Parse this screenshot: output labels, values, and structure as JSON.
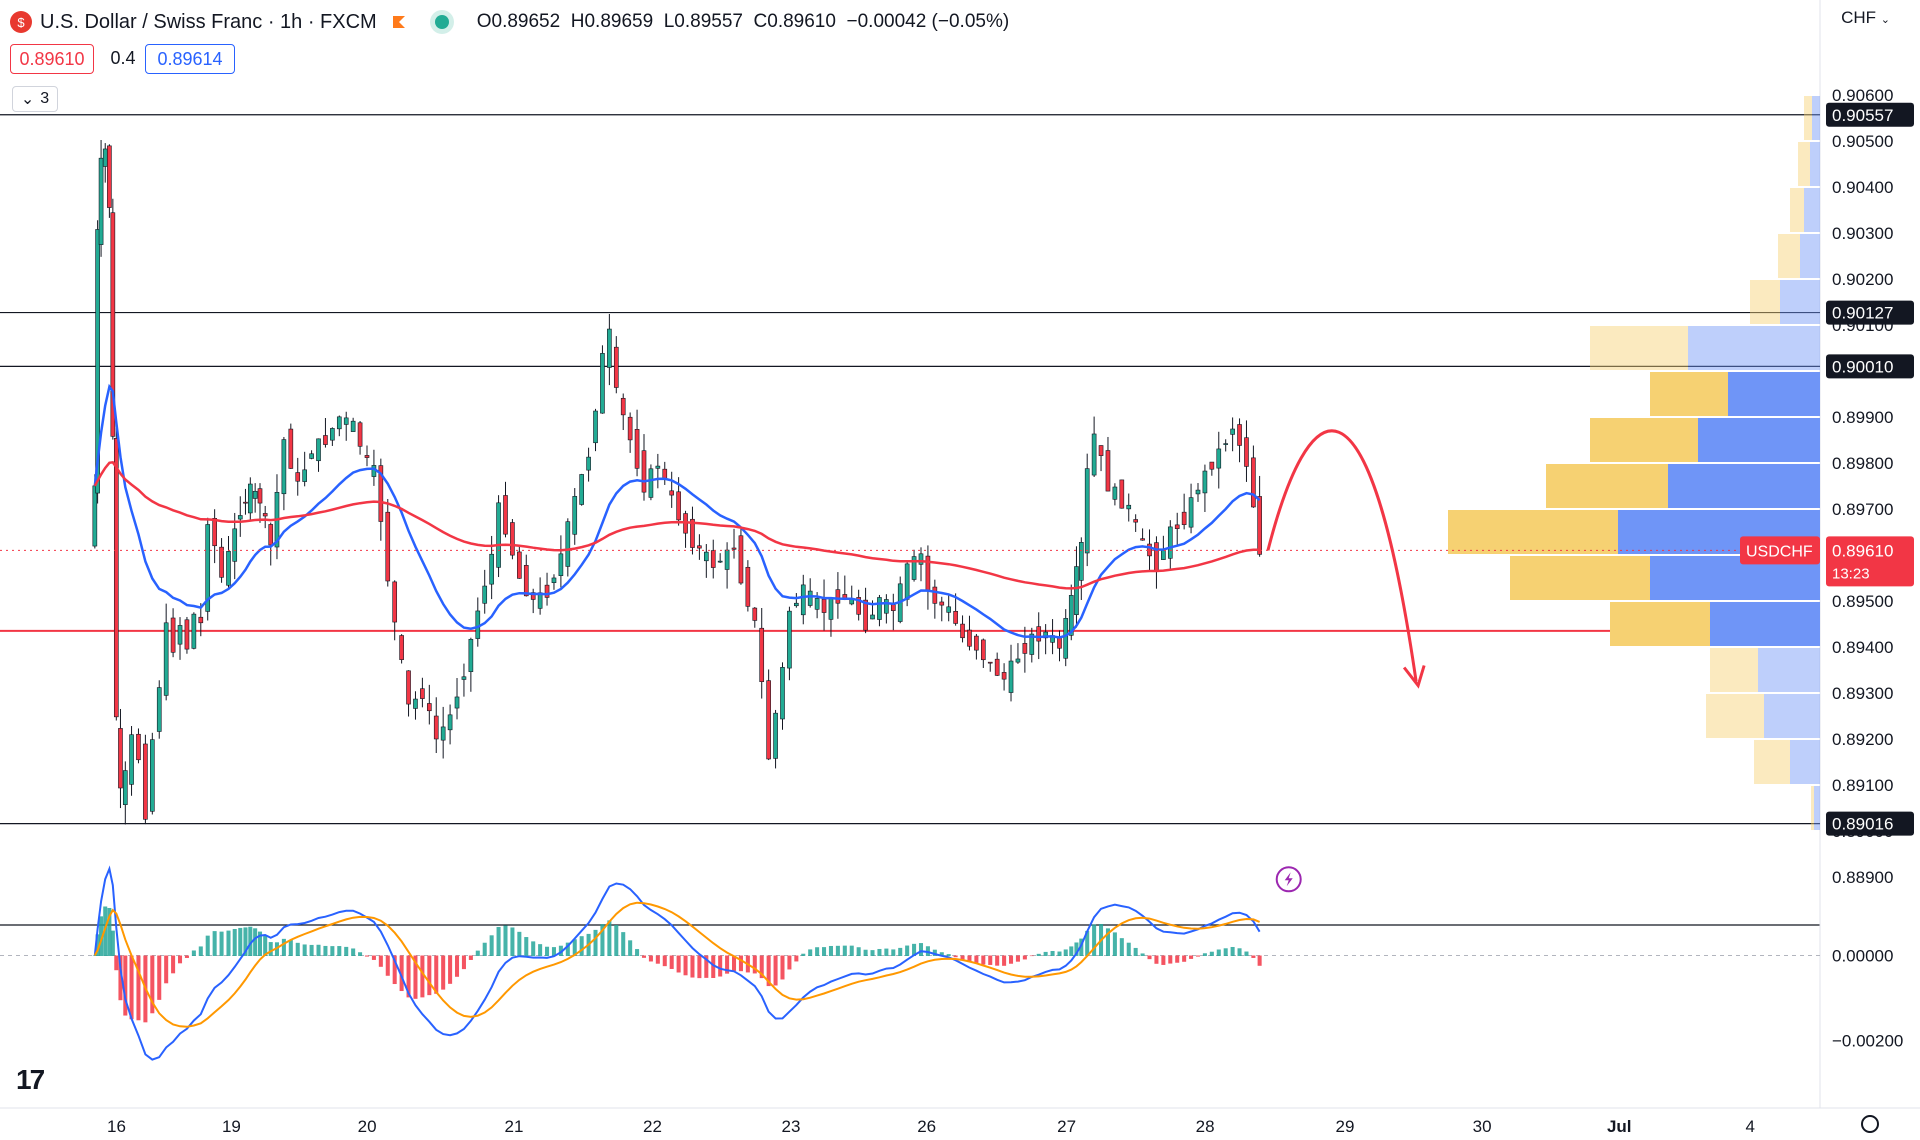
{
  "header": {
    "symbol_title": "U.S. Dollar / Swiss Franc · 1h · FXCM",
    "open": "O0.89652",
    "high": "H0.89659",
    "low": "L0.89557",
    "close": "C0.89610",
    "change": "−0.00042 (−0.05%)",
    "sell_price": "0.89610",
    "spread": "0.4",
    "buy_price": "0.89614",
    "indicator_count": "3",
    "currency": "CHF"
  },
  "chart_data": {
    "type": "candlestick",
    "symbol": "USDCHF",
    "timeframe": "1h",
    "price_axis": {
      "ylim": [
        0.8885,
        0.9065
      ],
      "ticks": [
        "0.90600",
        "0.90500",
        "0.90400",
        "0.90300",
        "0.90200",
        "0.90100",
        "0.90000",
        "0.89900",
        "0.89800",
        "0.89700",
        "0.89600",
        "0.89500",
        "0.89400",
        "0.89300",
        "0.89200",
        "0.89100",
        "0.89000",
        "0.88900"
      ]
    },
    "time_axis": {
      "labels": [
        "16",
        "19",
        "20",
        "21",
        "22",
        "23",
        "26",
        "27",
        "28",
        "29",
        "30",
        "Jul",
        "4"
      ],
      "label_index": [
        0.17,
        1,
        1.98,
        3.04,
        4.04,
        5.04,
        6.02,
        7.03,
        8.03,
        9.04,
        10.03,
        11,
        12
      ]
    },
    "horizontal_levels": [
      {
        "price": 0.90557,
        "label": "0.90557",
        "color": "#131722"
      },
      {
        "price": 0.90127,
        "label": "0.90127",
        "color": "#131722"
      },
      {
        "price": 0.9001,
        "label": "0.90010",
        "color": "#131722"
      },
      {
        "price": 0.89016,
        "label": "0.89016",
        "color": "#131722"
      },
      {
        "price": 0.89435,
        "label": "",
        "color": "#f23645"
      }
    ],
    "last_price": {
      "symbol": "USDCHF",
      "price": "0.89610",
      "countdown": "13:23",
      "color": "#f23645"
    },
    "price_path": [
      [
        0,
        0.8962
      ],
      [
        0.02,
        0.8975
      ],
      [
        0.04,
        0.903
      ],
      [
        0.07,
        0.9045
      ],
      [
        0.1,
        0.9048
      ],
      [
        0.13,
        0.9036
      ],
      [
        0.15,
        0.8985
      ],
      [
        0.18,
        0.8925
      ],
      [
        0.21,
        0.8908
      ],
      [
        0.25,
        0.8912
      ],
      [
        0.3,
        0.892
      ],
      [
        0.35,
        0.8916
      ],
      [
        0.4,
        0.8904
      ],
      [
        0.45,
        0.892
      ],
      [
        0.5,
        0.8932
      ],
      [
        0.55,
        0.8944
      ],
      [
        0.6,
        0.894
      ],
      [
        0.65,
        0.8945
      ],
      [
        0.7,
        0.894
      ],
      [
        0.75,
        0.8947
      ],
      [
        0.8,
        0.8945
      ],
      [
        0.85,
        0.8968
      ],
      [
        0.9,
        0.8962
      ],
      [
        0.95,
        0.8955
      ],
      [
        1.0,
        0.896
      ],
      [
        1.08,
        0.897
      ],
      [
        1.15,
        0.8974
      ],
      [
        1.22,
        0.8972
      ],
      [
        1.3,
        0.8962
      ],
      [
        1.4,
        0.8985
      ],
      [
        1.5,
        0.8975
      ],
      [
        1.6,
        0.8983
      ],
      [
        1.7,
        0.8985
      ],
      [
        1.8,
        0.899
      ],
      [
        1.9,
        0.8988
      ],
      [
        2.0,
        0.898
      ],
      [
        2.05,
        0.8978
      ],
      [
        2.1,
        0.8968
      ],
      [
        2.15,
        0.8955
      ],
      [
        2.2,
        0.8945
      ],
      [
        2.3,
        0.8927
      ],
      [
        2.4,
        0.893
      ],
      [
        2.5,
        0.892
      ],
      [
        2.6,
        0.8925
      ],
      [
        2.7,
        0.8935
      ],
      [
        2.8,
        0.8948
      ],
      [
        2.9,
        0.896
      ],
      [
        2.95,
        0.897
      ],
      [
        3.0,
        0.8966
      ],
      [
        3.1,
        0.8955
      ],
      [
        3.2,
        0.895
      ],
      [
        3.3,
        0.8952
      ],
      [
        3.4,
        0.896
      ],
      [
        3.5,
        0.8972
      ],
      [
        3.6,
        0.8982
      ],
      [
        3.7,
        0.9003
      ],
      [
        3.75,
        0.9008
      ],
      [
        3.8,
        0.8995
      ],
      [
        3.9,
        0.8985
      ],
      [
        4.0,
        0.8975
      ],
      [
        4.1,
        0.898
      ],
      [
        4.2,
        0.8972
      ],
      [
        4.3,
        0.8965
      ],
      [
        4.4,
        0.8961
      ],
      [
        4.5,
        0.8958
      ],
      [
        4.6,
        0.896
      ],
      [
        4.65,
        0.8962
      ],
      [
        4.7,
        0.8955
      ],
      [
        4.8,
        0.8945
      ],
      [
        4.85,
        0.8932
      ],
      [
        4.9,
        0.8916
      ],
      [
        5.0,
        0.8935
      ],
      [
        5.05,
        0.8948
      ],
      [
        5.15,
        0.8952
      ],
      [
        5.3,
        0.8948
      ],
      [
        5.4,
        0.8951
      ],
      [
        5.5,
        0.895
      ],
      [
        5.6,
        0.8945
      ],
      [
        5.7,
        0.895
      ],
      [
        5.8,
        0.8948
      ],
      [
        5.9,
        0.8957
      ],
      [
        6.0,
        0.896
      ],
      [
        6.05,
        0.8952
      ],
      [
        6.1,
        0.895
      ],
      [
        6.2,
        0.8948
      ],
      [
        6.3,
        0.8942
      ],
      [
        6.4,
        0.894
      ],
      [
        6.5,
        0.8936
      ],
      [
        6.6,
        0.8933
      ],
      [
        6.7,
        0.8938
      ],
      [
        6.8,
        0.8942
      ],
      [
        6.9,
        0.8943
      ],
      [
        7.0,
        0.894
      ],
      [
        7.08,
        0.895
      ],
      [
        7.15,
        0.8962
      ],
      [
        7.2,
        0.8978
      ],
      [
        7.25,
        0.8986
      ],
      [
        7.35,
        0.8975
      ],
      [
        7.5,
        0.897
      ],
      [
        7.6,
        0.8962
      ],
      [
        7.7,
        0.8958
      ],
      [
        7.8,
        0.8965
      ],
      [
        7.9,
        0.8968
      ],
      [
        8.0,
        0.8975
      ],
      [
        8.1,
        0.898
      ],
      [
        8.2,
        0.8985
      ],
      [
        8.25,
        0.8988
      ],
      [
        8.35,
        0.898
      ],
      [
        8.4,
        0.8971
      ],
      [
        8.44,
        0.8961
      ]
    ],
    "ema_fast_color": "#2962ff",
    "ema_slow_color": "#f23645",
    "volume_profile": {
      "buy_color": "#f6d172",
      "sell_color": "#6f95f7",
      "rows": [
        {
          "price": 0.8905,
          "buy": 3,
          "sell": 6
        },
        {
          "price": 0.8915,
          "buy": 36,
          "sell": 30
        },
        {
          "price": 0.8925,
          "buy": 58,
          "sell": 56
        },
        {
          "price": 0.8935,
          "buy": 48,
          "sell": 62
        },
        {
          "price": 0.8945,
          "buy": 100,
          "sell": 110
        },
        {
          "price": 0.8955,
          "buy": 140,
          "sell": 170
        },
        {
          "price": 0.8965,
          "buy": 170,
          "sell": 202
        },
        {
          "price": 0.8975,
          "buy": 122,
          "sell": 152
        },
        {
          "price": 0.8985,
          "buy": 108,
          "sell": 122
        },
        {
          "price": 0.8995,
          "buy": 78,
          "sell": 92
        },
        {
          "price": 0.9005,
          "buy": 98,
          "sell": 132
        },
        {
          "price": 0.9015,
          "buy": 30,
          "sell": 40
        },
        {
          "price": 0.9025,
          "buy": 22,
          "sell": 20
        },
        {
          "price": 0.9035,
          "buy": 14,
          "sell": 16
        },
        {
          "price": 0.9045,
          "buy": 12,
          "sell": 10
        },
        {
          "price": 0.9055,
          "buy": 8,
          "sell": 8
        }
      ]
    },
    "macd": {
      "ylim": [
        -0.0034,
        0.0006
      ],
      "ticks": [
        "0.00000",
        "−0.00200"
      ],
      "macd_color": "#2962ff",
      "signal_color": "#ff9800",
      "hist_pos_color": "#26a69a",
      "hist_neg_color": "#f23645"
    },
    "annotation": {
      "type": "curved-arrow",
      "color": "#f23645"
    }
  }
}
